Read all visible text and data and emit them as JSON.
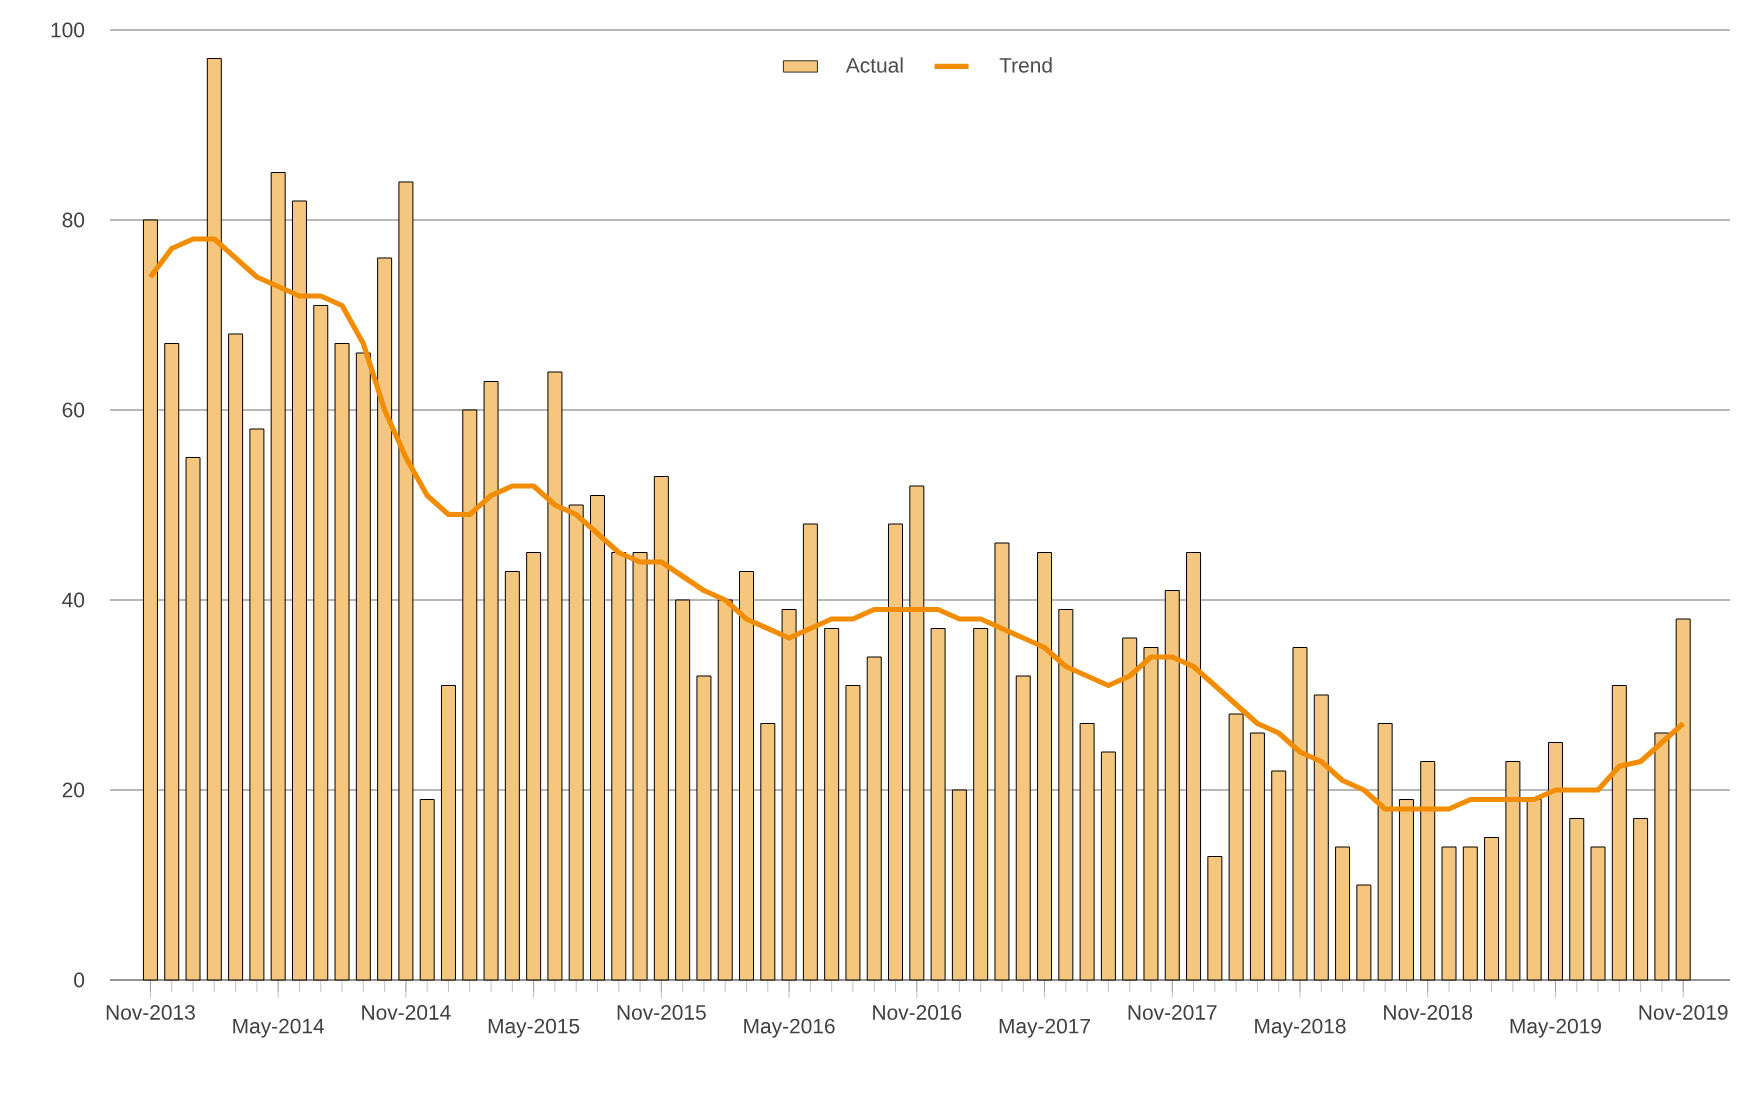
{
  "chart_data": {
    "type": "bar",
    "categories": [
      "Nov-2013",
      null,
      null,
      null,
      null,
      null,
      "May-2014",
      null,
      null,
      null,
      null,
      null,
      "Nov-2014",
      null,
      null,
      null,
      null,
      null,
      "May-2015",
      null,
      null,
      null,
      null,
      null,
      "Nov-2015",
      null,
      null,
      null,
      null,
      null,
      "May-2016",
      null,
      null,
      null,
      null,
      null,
      "Nov-2016",
      null,
      null,
      null,
      null,
      null,
      "May-2017",
      null,
      null,
      null,
      null,
      null,
      "Nov-2017",
      null,
      null,
      null,
      null,
      null,
      "May-2018",
      null,
      null,
      null,
      null,
      null,
      "Nov-2018",
      null,
      null,
      null,
      null,
      null,
      "May-2019",
      null,
      null,
      null,
      null,
      null,
      "Nov-2019"
    ],
    "series": [
      {
        "name": "Actual",
        "color": "#f5c77e",
        "values": [
          80,
          67,
          55,
          97,
          68,
          58,
          85,
          82,
          71,
          67,
          66,
          76,
          84,
          19,
          31,
          60,
          63,
          43,
          45,
          64,
          50,
          51,
          45,
          45,
          53,
          40,
          32,
          40,
          43,
          27,
          39,
          48,
          37,
          31,
          34,
          48,
          52,
          37,
          20,
          37,
          46,
          32,
          45,
          39,
          27,
          24,
          36,
          35,
          41,
          45,
          13,
          28,
          26,
          22,
          35,
          30,
          14,
          10,
          27,
          19,
          23,
          14,
          14,
          15,
          23,
          19,
          25,
          17,
          14,
          31,
          17,
          26,
          38
        ]
      },
      {
        "name": "Trend",
        "type": "line",
        "color": "#f28c00",
        "values": [
          74,
          77,
          78,
          78,
          76,
          74,
          73,
          72,
          72,
          71,
          67,
          60,
          55,
          51,
          49,
          49,
          51,
          52,
          52,
          50,
          49,
          47,
          45,
          44,
          44,
          42.5,
          41,
          40,
          38,
          37,
          36,
          37,
          38,
          38,
          39,
          39,
          39,
          39,
          38,
          38,
          37,
          36,
          35,
          33,
          32,
          31,
          32,
          34,
          34,
          33,
          31,
          29,
          27,
          26,
          24,
          23,
          21,
          20,
          18,
          18,
          18,
          18,
          19,
          19,
          19,
          19,
          20,
          20,
          20,
          22.5,
          23,
          25,
          27
        ]
      }
    ],
    "ylim": [
      0,
      100
    ],
    "yticks": [
      0,
      20,
      40,
      60,
      80,
      100
    ],
    "grid": "y",
    "legend": "top",
    "line_style": "solid"
  }
}
